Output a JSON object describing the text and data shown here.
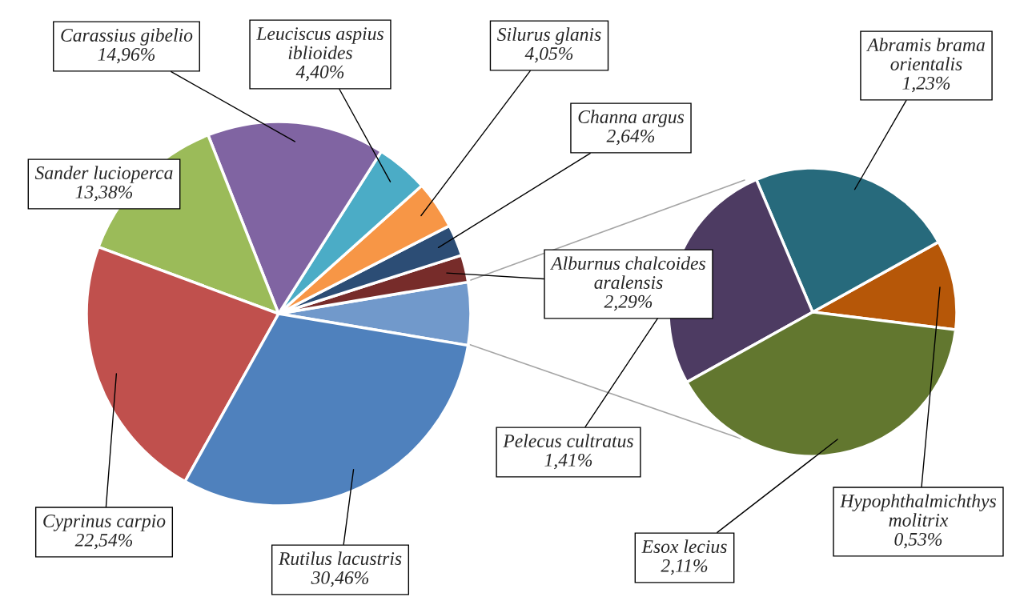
{
  "chart_data": [
    {
      "type": "pie",
      "categories": [
        null,
        "Alburnus chalcoides aralensis",
        "Channa argus",
        "Silurus glanis",
        "Leuciscus aspius iblioides",
        "Carassius gibelio",
        "Sander lucioperca",
        "Cyprinus carpio",
        "Rutilus lacustris"
      ],
      "values": [
        5.28,
        2.29,
        2.64,
        4.05,
        4.4,
        14.96,
        13.38,
        22.54,
        30.46
      ],
      "colors": [
        "#7199cb",
        "#772c2a",
        "#2c4d75",
        "#f79646",
        "#4bacc6",
        "#8064a2",
        "#9bbb59",
        "#c0504d",
        "#4f81bd"
      ],
      "value_labels": [
        null,
        "2,29%",
        "2,64%",
        "4,05%",
        "4,40%",
        "14,96%",
        "13,38%",
        "22,54%",
        "30,46%"
      ]
    },
    {
      "type": "pie",
      "categories": [
        "Hypophthalmichthys molitrix",
        "Abramis brama orientalis",
        "Pelecus cultratus",
        "Esox lecius"
      ],
      "values": [
        0.53,
        1.23,
        1.41,
        2.11
      ],
      "colors": [
        "#b65708",
        "#276a7c",
        "#4d3b62",
        "#62772f"
      ],
      "value_labels": [
        "0,53%",
        "1,23%",
        "1,41%",
        "2,11%"
      ]
    }
  ]
}
